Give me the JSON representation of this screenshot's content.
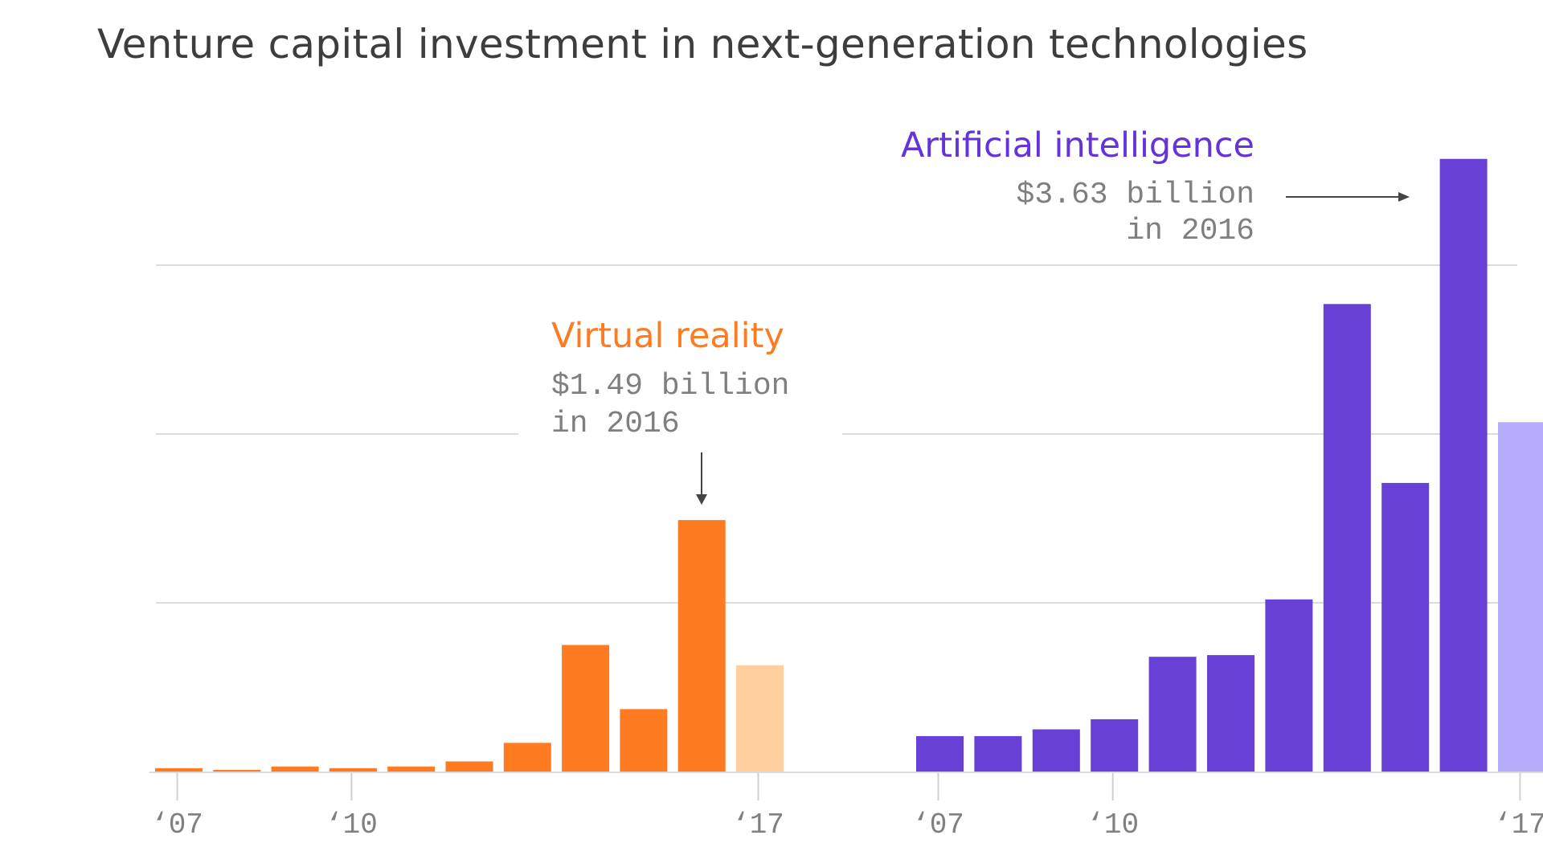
{
  "title": "Venture capital investment in next-generation technologies",
  "colors": {
    "vr": "#ff7b22",
    "vr_projected": "#ffcf9e",
    "ai": "#6741d5",
    "ai_projected": "#b3adfa",
    "ai_label": "#6433d9",
    "grid": "#dcdcdc",
    "note": "#7f7f7f"
  },
  "chart_data": [
    {
      "type": "bar",
      "title": "Virtual reality",
      "annotation": [
        "$1.49 billion",
        "in 2016"
      ],
      "unit": "billion USD",
      "categories": [
        "2007",
        "2008",
        "2009",
        "2010",
        "2011",
        "2012",
        "2013",
        "2014",
        "2015",
        "2016",
        "2017"
      ],
      "values": [
        0.02,
        0.01,
        0.03,
        0.02,
        0.03,
        0.06,
        0.17,
        0.75,
        0.37,
        1.49,
        0.63
      ],
      "projected": [
        false,
        false,
        false,
        false,
        false,
        false,
        false,
        false,
        false,
        false,
        true
      ],
      "x_ticks": [
        {
          "index": 0,
          "label": "‘07"
        },
        {
          "index": 3,
          "label": "‘10"
        },
        {
          "index": 10,
          "label": "‘17"
        }
      ],
      "ylim": [
        0,
        3.9
      ],
      "gridlines": [
        1,
        2,
        3
      ],
      "grid": true
    },
    {
      "type": "bar",
      "title": "Artificial intelligence",
      "annotation": [
        "$3.63 billion",
        "in 2016"
      ],
      "unit": "billion USD",
      "categories": [
        "2007",
        "2008",
        "2009",
        "2010",
        "2011",
        "2012",
        "2013",
        "2014",
        "2015",
        "2016",
        "2017"
      ],
      "values": [
        0.21,
        0.21,
        0.25,
        0.31,
        0.68,
        0.69,
        1.02,
        2.77,
        1.71,
        3.63,
        2.07
      ],
      "projected": [
        false,
        false,
        false,
        false,
        false,
        false,
        false,
        false,
        false,
        false,
        true
      ],
      "x_ticks": [
        {
          "index": 0,
          "label": "‘07"
        },
        {
          "index": 3,
          "label": "‘10"
        },
        {
          "index": 10,
          "label": "‘17"
        }
      ],
      "ylim": [
        0,
        3.9
      ],
      "gridlines": [
        1,
        2,
        3
      ],
      "grid": true
    }
  ]
}
